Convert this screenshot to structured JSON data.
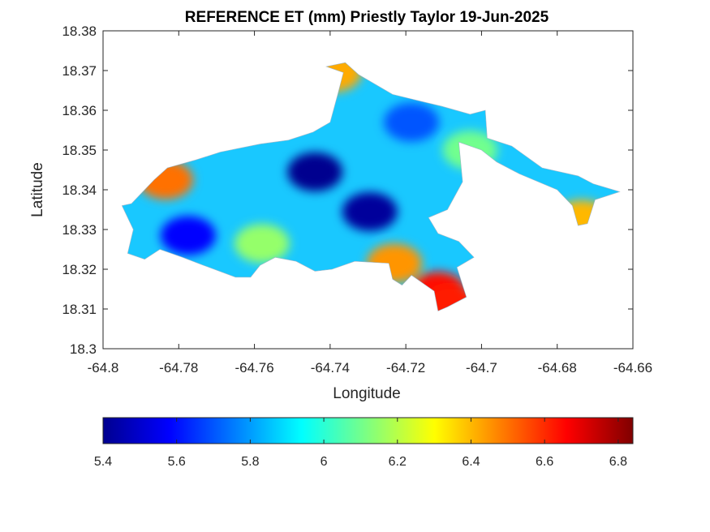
{
  "title": "REFERENCE ET (mm) Priestly Taylor 19-Jun-2025",
  "chart_data": {
    "type": "heatmap",
    "title": "REFERENCE ET (mm) Priestly Taylor 19-Jun-2025",
    "xlabel": "Longitude",
    "ylabel": "Latitude",
    "xlim": [
      -64.8,
      -64.66
    ],
    "ylim": [
      18.3,
      18.38
    ],
    "x_ticks": [
      "-64.8",
      "-64.78",
      "-64.76",
      "-64.74",
      "-64.72",
      "-64.7",
      "-64.68",
      "-64.66"
    ],
    "y_ticks": [
      "18.3",
      "18.31",
      "18.32",
      "18.33",
      "18.34",
      "18.35",
      "18.36",
      "18.37",
      "18.38"
    ],
    "x_tick_values": [
      -64.8,
      -64.78,
      -64.76,
      -64.74,
      -64.72,
      -64.7,
      -64.68,
      -64.66
    ],
    "y_tick_values": [
      18.3,
      18.31,
      18.32,
      18.33,
      18.34,
      18.35,
      18.36,
      18.37,
      18.38
    ],
    "colormap": "jet",
    "colorbar": {
      "range": [
        5.4,
        6.84
      ],
      "ticks": [
        "5.4",
        "5.6",
        "5.8",
        "6",
        "6.2",
        "6.4",
        "6.6",
        "6.8"
      ],
      "tick_values": [
        5.4,
        5.6,
        5.8,
        6.0,
        6.2,
        6.4,
        6.6,
        6.8
      ],
      "orientation": "horizontal",
      "placement": "bottom"
    },
    "grid": false,
    "island_outline_lonlat": [
      [
        -64.7925,
        18.3365
      ],
      [
        -64.7865,
        18.3425
      ],
      [
        -64.783,
        18.3455
      ],
      [
        -64.7755,
        18.3475
      ],
      [
        -64.769,
        18.3495
      ],
      [
        -64.7585,
        18.3515
      ],
      [
        -64.751,
        18.3525
      ],
      [
        -64.7445,
        18.3545
      ],
      [
        -64.74,
        18.357
      ],
      [
        -64.738,
        18.364
      ],
      [
        -64.7365,
        18.3695
      ],
      [
        -64.741,
        18.371
      ],
      [
        -64.736,
        18.372
      ],
      [
        -64.7325,
        18.369
      ],
      [
        -64.7235,
        18.364
      ],
      [
        -64.7105,
        18.361
      ],
      [
        -64.703,
        18.359
      ],
      [
        -64.699,
        18.36
      ],
      [
        -64.6985,
        18.353
      ],
      [
        -64.692,
        18.351
      ],
      [
        -64.684,
        18.3455
      ],
      [
        -64.6745,
        18.3435
      ],
      [
        -64.6705,
        18.3415
      ],
      [
        -64.6635,
        18.3395
      ],
      [
        -64.67,
        18.3375
      ],
      [
        -64.672,
        18.3315
      ],
      [
        -64.6745,
        18.331
      ],
      [
        -64.676,
        18.336
      ],
      [
        -64.68,
        18.34
      ],
      [
        -64.69,
        18.344
      ],
      [
        -64.696,
        18.347
      ],
      [
        -64.7,
        18.35
      ],
      [
        -64.706,
        18.352
      ],
      [
        -64.705,
        18.342
      ],
      [
        -64.709,
        18.335
      ],
      [
        -64.714,
        18.333
      ],
      [
        -64.7115,
        18.329
      ],
      [
        -64.706,
        18.327
      ],
      [
        -64.702,
        18.323
      ],
      [
        -64.7065,
        18.3205
      ],
      [
        -64.704,
        18.313
      ],
      [
        -64.709,
        18.3105
      ],
      [
        -64.7115,
        18.3095
      ],
      [
        -64.7125,
        18.3145
      ],
      [
        -64.7185,
        18.3185
      ],
      [
        -64.721,
        18.316
      ],
      [
        -64.7235,
        18.3175
      ],
      [
        -64.7245,
        18.3215
      ],
      [
        -64.7335,
        18.322
      ],
      [
        -64.7395,
        18.32
      ],
      [
        -64.744,
        18.3195
      ],
      [
        -64.749,
        18.322
      ],
      [
        -64.7545,
        18.323
      ],
      [
        -64.7585,
        18.321
      ],
      [
        -64.761,
        18.318
      ],
      [
        -64.765,
        18.318
      ],
      [
        -64.7735,
        18.321
      ],
      [
        -64.779,
        18.323
      ],
      [
        -64.785,
        18.325
      ],
      [
        -64.789,
        18.3225
      ],
      [
        -64.7935,
        18.324
      ],
      [
        -64.792,
        18.33
      ],
      [
        -64.795,
        18.336
      ]
    ],
    "features": [
      {
        "label": "ET minimum (dark blue)",
        "lon": -64.744,
        "lat": 18.3445,
        "value": 5.4
      },
      {
        "label": "ET minimum (dark blue)",
        "lon": -64.7295,
        "lat": 18.3345,
        "value": 5.42
      },
      {
        "label": "low ET",
        "lon": -64.7775,
        "lat": 18.3285,
        "value": 5.58
      },
      {
        "label": "low ET",
        "lon": -64.7185,
        "lat": 18.357,
        "value": 5.7
      },
      {
        "label": "high ET (red)",
        "lon": -64.7115,
        "lat": 18.3145,
        "value": 6.65
      },
      {
        "label": "high ET (red)",
        "lon": -64.708,
        "lat": 18.311,
        "value": 6.62
      },
      {
        "label": "high ET (orange)",
        "lon": -64.7835,
        "lat": 18.3425,
        "value": 6.5
      },
      {
        "label": "high ET (orange)",
        "lon": -64.739,
        "lat": 18.3695,
        "value": 6.42
      },
      {
        "label": "high ET (orange)",
        "lon": -64.723,
        "lat": 18.3215,
        "value": 6.45
      },
      {
        "label": "high ET (orange)",
        "lon": -64.6735,
        "lat": 18.3325,
        "value": 6.4
      },
      {
        "label": "mid ET (green)",
        "lon": -64.758,
        "lat": 18.3265,
        "value": 6.15
      },
      {
        "label": "mid ET (green)",
        "lon": -64.703,
        "lat": 18.35,
        "value": 6.1
      }
    ]
  }
}
